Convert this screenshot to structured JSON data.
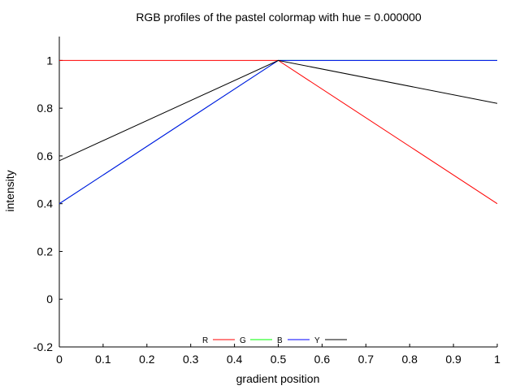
{
  "chart_data": {
    "type": "line",
    "title": "RGB profiles of the pastel colormap with hue = 0.000000",
    "xlabel": "gradient position",
    "ylabel": "intensity",
    "xlim": [
      0,
      1
    ],
    "ylim": [
      -0.2,
      1.1
    ],
    "x_ticks": [
      "0",
      "0.1",
      "0.2",
      "0.3",
      "0.4",
      "0.5",
      "0.6",
      "0.7",
      "0.8",
      "0.9",
      "1"
    ],
    "y_ticks": [
      "-0.2",
      "0",
      "0.2",
      "0.4",
      "0.6",
      "0.8",
      "1"
    ],
    "legend_position": "bottom-center",
    "series": [
      {
        "name": "R",
        "color": "#ff0000",
        "x": [
          0,
          0.5,
          1
        ],
        "y": [
          1.0,
          1.0,
          0.4
        ]
      },
      {
        "name": "G",
        "color": "#00ff00",
        "x": [
          0,
          0.5,
          1
        ],
        "y": [
          0.4,
          1.0,
          1.0
        ]
      },
      {
        "name": "B",
        "color": "#0000ff",
        "x": [
          0,
          0.5,
          1
        ],
        "y": [
          0.4,
          1.0,
          1.0
        ]
      },
      {
        "name": "Y",
        "color": "#000000",
        "x": [
          0,
          0.5,
          1
        ],
        "y": [
          0.58,
          1.0,
          0.82
        ]
      }
    ]
  }
}
